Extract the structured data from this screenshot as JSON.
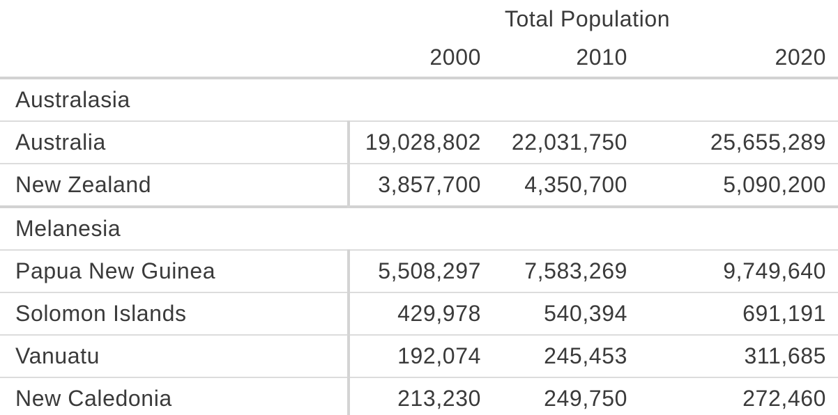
{
  "table": {
    "title": "Total Population",
    "year_headers": [
      "2000",
      "2010",
      "2020"
    ],
    "sections": [
      {
        "group": "Australasia",
        "rows": [
          {
            "name": "Australia",
            "values": [
              "19,028,802",
              "22,031,750",
              "25,655,289"
            ]
          },
          {
            "name": "New Zealand",
            "values": [
              "3,857,700",
              "4,350,700",
              "5,090,200"
            ]
          }
        ]
      },
      {
        "group": "Melanesia",
        "rows": [
          {
            "name": "Papua New Guinea",
            "values": [
              "5,508,297",
              "7,583,269",
              "9,749,640"
            ]
          },
          {
            "name": "Solomon Islands",
            "values": [
              "429,978",
              "540,394",
              "691,191"
            ]
          },
          {
            "name": "Vanuatu",
            "values": [
              "192,074",
              "245,453",
              "311,685"
            ]
          },
          {
            "name": "New Caledonia",
            "values": [
              "213,230",
              "249,750",
              "272,460"
            ]
          }
        ]
      }
    ]
  },
  "chart_data": {
    "type": "table",
    "title": "Total Population",
    "columns": [
      "2000",
      "2010",
      "2020"
    ],
    "groups": [
      {
        "name": "Australasia",
        "rows": [
          {
            "label": "Australia",
            "values": [
              19028802,
              22031750,
              25655289
            ]
          },
          {
            "label": "New Zealand",
            "values": [
              3857700,
              4350700,
              5090200
            ]
          }
        ]
      },
      {
        "name": "Melanesia",
        "rows": [
          {
            "label": "Papua New Guinea",
            "values": [
              5508297,
              7583269,
              9749640
            ]
          },
          {
            "label": "Solomon Islands",
            "values": [
              429978,
              540394,
              691191
            ]
          },
          {
            "label": "Vanuatu",
            "values": [
              192074,
              245453,
              311685
            ]
          },
          {
            "label": "New Caledonia",
            "values": [
              213230,
              249750,
              272460
            ]
          }
        ]
      }
    ]
  },
  "colors": {
    "text": "#3a3a3a",
    "border_thick": "#d2d2d2",
    "border_thin": "#dcdcdc",
    "divider": "#d4d4d4",
    "background": "#ffffff"
  }
}
